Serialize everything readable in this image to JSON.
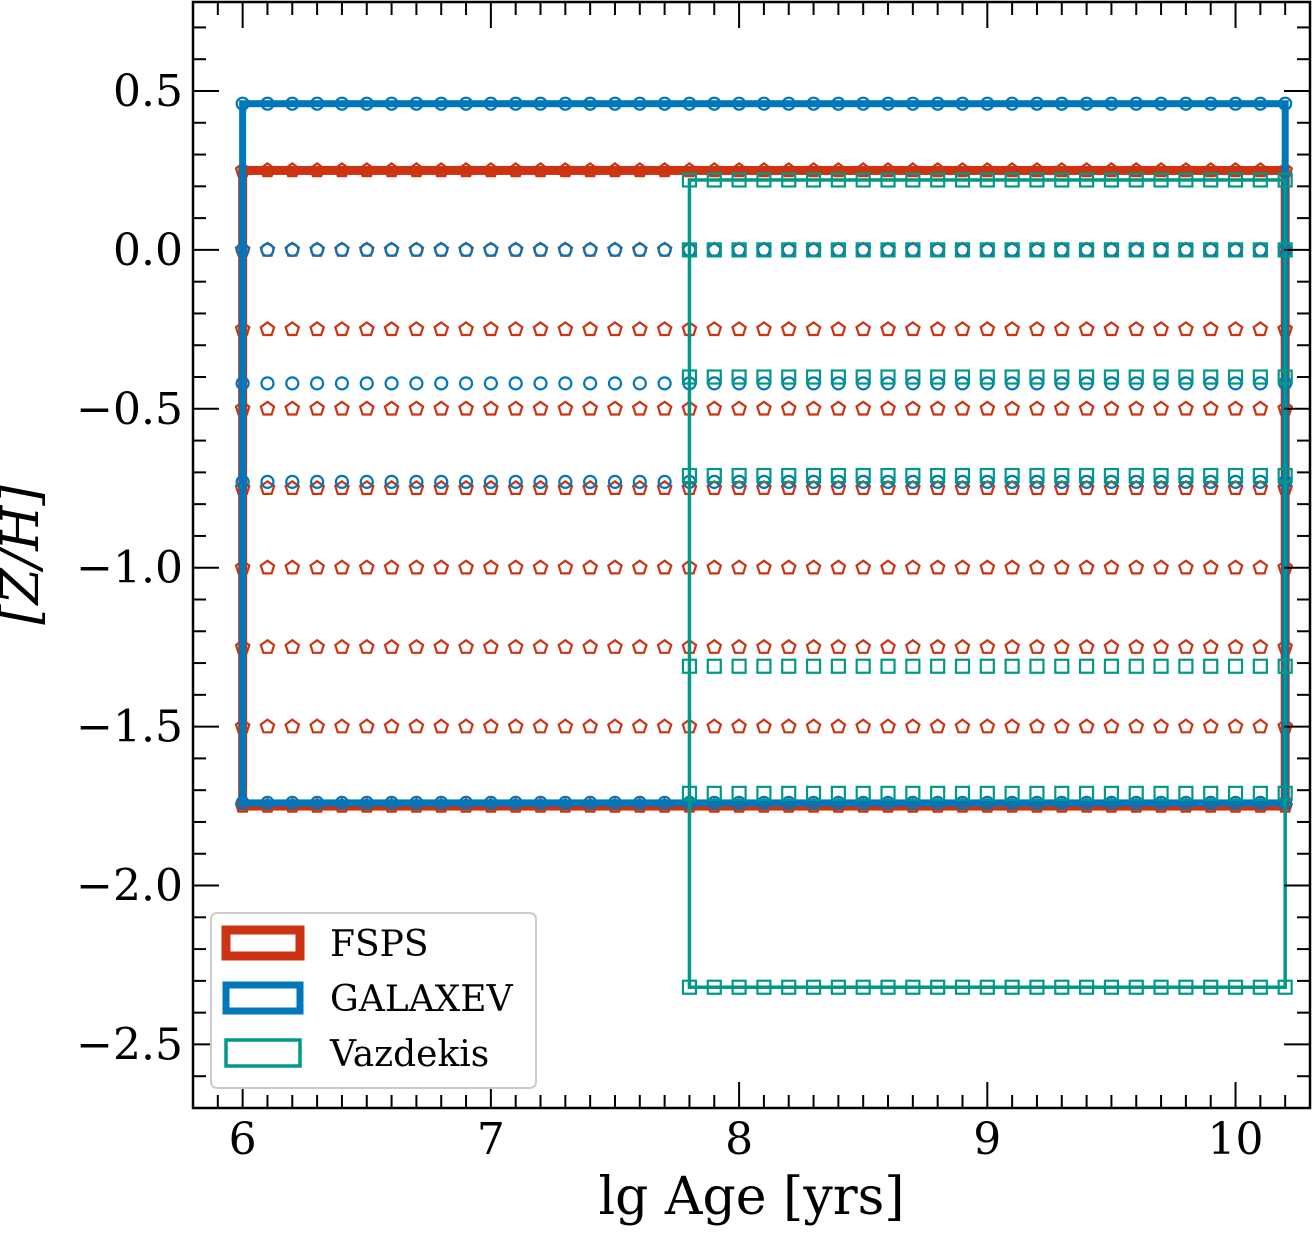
{
  "chart_data": {
    "type": "scatter",
    "xlabel": "lg Age [yrs]",
    "ylabel": "[Z/H]",
    "xlim": [
      5.8,
      10.3
    ],
    "ylim": [
      -2.7,
      0.78
    ],
    "xticks": [
      6,
      7,
      8,
      9,
      10
    ],
    "xtick_labels": [
      "6",
      "7",
      "8",
      "9",
      "10"
    ],
    "yticks": [
      0.5,
      0.0,
      -0.5,
      -1.0,
      -1.5,
      -2.0,
      -2.5
    ],
    "ytick_labels": [
      "0.5",
      "0.0",
      "−0.5",
      "−1.0",
      "−1.5",
      "−2.0",
      "−2.5"
    ],
    "grid": false,
    "legend_position": "lower-left",
    "series": [
      {
        "name": "FSPS",
        "color": "#cc3311",
        "marker": "pentagon",
        "box_stroke": "thick",
        "x_start": 6.0,
        "x_end": 10.2,
        "x_step": 0.1,
        "metallicities": [
          0.25,
          0.0,
          -0.25,
          -0.5,
          -0.75,
          -1.0,
          -1.25,
          -1.5,
          -1.75
        ],
        "box": {
          "x": [
            6.0,
            10.2
          ],
          "y": [
            -1.75,
            0.25
          ]
        }
      },
      {
        "name": "GALAXEV",
        "color": "#0077bb",
        "marker": "circle",
        "box_stroke": "medium",
        "x_start": 6.0,
        "x_end": 10.2,
        "x_step": 0.1,
        "metallicities": [
          0.46,
          0.0,
          -0.42,
          -0.73,
          -1.74
        ],
        "box": {
          "x": [
            6.0,
            10.2
          ],
          "y": [
            -1.74,
            0.46
          ]
        }
      },
      {
        "name": "Vazdekis",
        "color": "#009988",
        "marker": "square",
        "box_stroke": "thin",
        "x_start": 7.8,
        "x_end": 10.2,
        "x_step": 0.1,
        "metallicities": [
          0.22,
          0.0,
          -0.4,
          -0.71,
          -1.31,
          -1.71,
          -2.32
        ],
        "box": {
          "x": [
            7.8,
            10.2
          ],
          "y": [
            -2.32,
            0.22
          ]
        }
      }
    ]
  }
}
